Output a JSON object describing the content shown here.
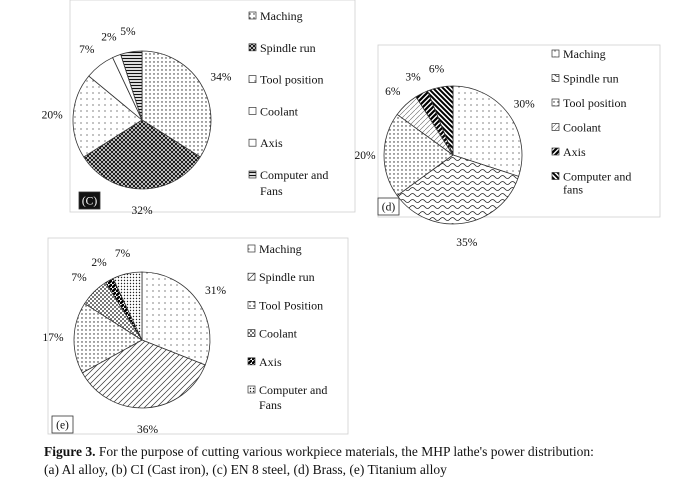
{
  "caption": {
    "bold": "Figure 3.",
    "line1": " For the purpose of cutting various workpiece materials, the MHP lathe's power distribution:",
    "line2": "(a) Al alloy, (b) CI (Cast iron), (c) EN 8 steel, (d) Brass, (e) Titanium alloy"
  },
  "chart_data": [
    {
      "type": "pie",
      "panel_label": "(C)",
      "categories": [
        "Maching",
        "Spindle run",
        "Tool position",
        "Coolant",
        "Axis",
        "Computer and Fans"
      ],
      "values": [
        34,
        32,
        20,
        7,
        2,
        5
      ],
      "data_labels": [
        "34%",
        "32%",
        "20%",
        "7%",
        "2%",
        "5%"
      ],
      "legend": "right",
      "patterns": [
        "dots",
        "diag-cross-dense",
        "dots-sparse",
        "blank",
        "blank",
        "hlines"
      ]
    },
    {
      "type": "pie",
      "panel_label": "(d)",
      "categories": [
        "Maching",
        "Spindle run",
        "Tool position",
        "Coolant",
        "Axis",
        "Computer and fans"
      ],
      "values": [
        30,
        35,
        20,
        6,
        3,
        6
      ],
      "data_labels": [
        "30%",
        "35%",
        "20%",
        "6%",
        "3%",
        "6%"
      ],
      "legend": "right",
      "patterns": [
        "dots-sparse",
        "waves",
        "dots",
        "diag-light",
        "diag-bold",
        "diag-bold-rev"
      ]
    },
    {
      "type": "pie",
      "panel_label": "(e)",
      "categories": [
        "Maching",
        "Spindle run",
        "Tool Position",
        "Coolant",
        "Axis",
        "Computer and Fans"
      ],
      "values": [
        31,
        36,
        17,
        7,
        2,
        7
      ],
      "data_labels": [
        "31%",
        "36%",
        "17%",
        "7%",
        "2%",
        "7%"
      ],
      "legend": "right",
      "patterns": [
        "dots-sparse",
        "diag-lines",
        "dots",
        "checks",
        "black-half",
        "dots-dense"
      ]
    }
  ]
}
